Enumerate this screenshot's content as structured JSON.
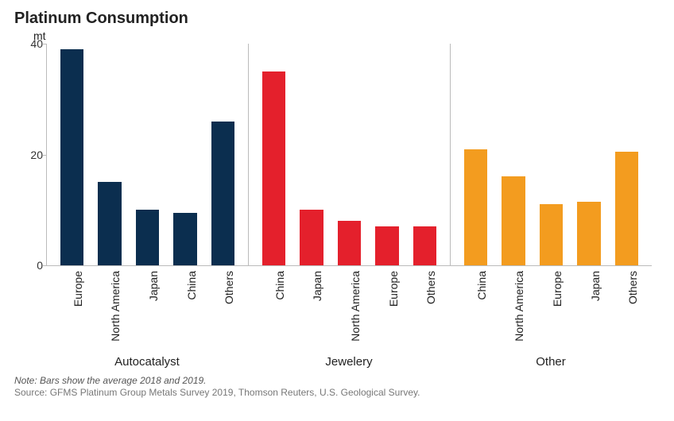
{
  "title": "Platinum Consumption",
  "ylabel": "mt",
  "ylim": [
    0,
    40
  ],
  "yticks": [
    0,
    20,
    40
  ],
  "tick_fontsize": 14,
  "title_fontsize": 20,
  "label_fontsize": 14,
  "grouplabel_fontsize": 15,
  "note_fontsize": 12,
  "background_color": "#ffffff",
  "axis_color": "#bbbbbb",
  "text_color": "#222222",
  "bar_width": 0.62,
  "type": "grouped-bar",
  "groups": [
    {
      "name": "Autocatalyst",
      "color": "#0b2e4f",
      "bars": [
        {
          "label": "Europe",
          "value": 39
        },
        {
          "label": "North America",
          "value": 15
        },
        {
          "label": "Japan",
          "value": 10
        },
        {
          "label": "China",
          "value": 9.5
        },
        {
          "label": "Others",
          "value": 26
        }
      ]
    },
    {
      "name": "Jewelery",
      "color": "#e4202c",
      "bars": [
        {
          "label": "China",
          "value": 35
        },
        {
          "label": "Japan",
          "value": 10
        },
        {
          "label": "North America",
          "value": 8
        },
        {
          "label": "Europe",
          "value": 7
        },
        {
          "label": "Others",
          "value": 7
        }
      ]
    },
    {
      "name": "Other",
      "color": "#f39c1f",
      "bars": [
        {
          "label": "China",
          "value": 21
        },
        {
          "label": "North America",
          "value": 16
        },
        {
          "label": "Europe",
          "value": 11
        },
        {
          "label": "Japan",
          "value": 11.5
        },
        {
          "label": "Others",
          "value": 20.5
        }
      ]
    }
  ],
  "note": "Note: Bars show the average 2018 and 2019.",
  "source": "Source: GFMS Platinum Group Metals Survey 2019, Thomson Reuters, U.S. Geological Survey."
}
